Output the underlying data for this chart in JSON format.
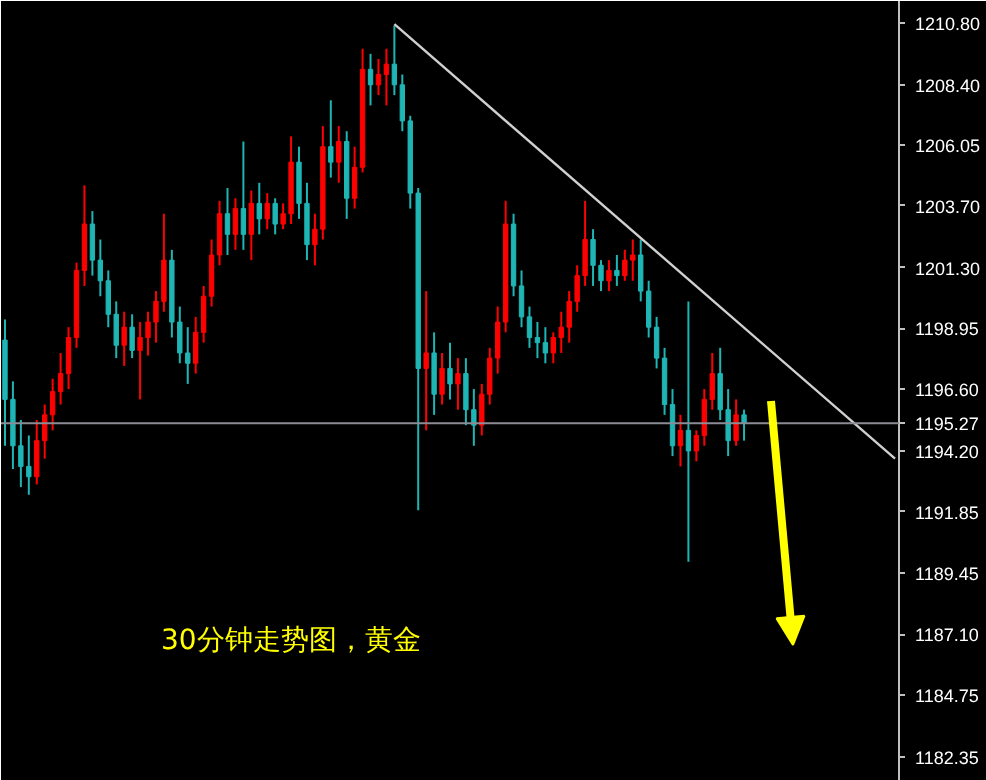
{
  "chart_data": {
    "type": "candlestick",
    "categories": [
      null,
      null,
      null,
      null,
      null,
      null,
      null,
      null,
      null,
      null,
      null,
      null,
      null,
      null,
      null,
      null,
      null,
      null,
      null,
      null,
      null,
      null,
      null,
      null,
      null,
      null,
      null,
      null,
      null,
      null,
      null,
      null,
      null,
      null,
      null,
      null,
      null,
      null,
      null,
      null,
      null,
      null,
      null,
      null,
      null,
      null,
      null,
      null,
      null,
      null,
      null,
      null,
      null,
      null,
      null,
      null,
      null,
      null,
      null,
      null,
      null,
      null,
      null,
      null,
      null,
      null,
      null,
      null,
      null,
      null,
      null,
      null,
      null,
      null,
      null,
      null,
      null,
      null,
      null,
      null,
      null,
      null,
      null,
      null,
      null,
      null,
      null,
      null,
      null,
      null,
      null,
      null,
      null,
      null,
      null,
      null,
      null,
      null,
      null,
      null,
      null,
      null,
      null,
      null,
      null,
      null,
      null,
      null,
      null,
      null,
      null,
      null,
      null
    ],
    "ohlc": [
      [
        1198.5,
        1199.3,
        1194.4,
        1196.2
      ],
      [
        1196.2,
        1196.9,
        1193.5,
        1194.4
      ],
      [
        1194.4,
        1195.4,
        1192.8,
        1193.6
      ],
      [
        1193.6,
        1194.8,
        1192.5,
        1193.2
      ],
      [
        1193.2,
        1195.4,
        1192.9,
        1194.6
      ],
      [
        1194.6,
        1196.0,
        1193.9,
        1195.6
      ],
      [
        1195.6,
        1197.0,
        1195.0,
        1196.5
      ],
      [
        1196.5,
        1198.0,
        1196.0,
        1197.2
      ],
      [
        1197.2,
        1199.0,
        1196.6,
        1198.6
      ],
      [
        1198.6,
        1201.5,
        1198.2,
        1201.2
      ],
      [
        1201.2,
        1204.5,
        1200.6,
        1203.0
      ],
      [
        1203.0,
        1203.5,
        1201.0,
        1201.6
      ],
      [
        1201.6,
        1202.4,
        1200.2,
        1200.8
      ],
      [
        1200.8,
        1201.2,
        1199.0,
        1199.5
      ],
      [
        1199.5,
        1200.0,
        1197.8,
        1198.3
      ],
      [
        1198.3,
        1199.6,
        1197.5,
        1199.0
      ],
      [
        1199.0,
        1199.5,
        1197.8,
        1198.1
      ],
      [
        1198.1,
        1199.2,
        1196.2,
        1198.6
      ],
      [
        1198.6,
        1199.6,
        1197.9,
        1199.2
      ],
      [
        1199.2,
        1200.4,
        1198.4,
        1200.0
      ],
      [
        1200.0,
        1203.4,
        1199.6,
        1201.6
      ],
      [
        1201.6,
        1202.0,
        1198.6,
        1199.2
      ],
      [
        1199.2,
        1199.8,
        1197.6,
        1198.0
      ],
      [
        1198.0,
        1199.0,
        1196.8,
        1197.6
      ],
      [
        1197.6,
        1199.4,
        1197.2,
        1198.8
      ],
      [
        1198.8,
        1200.6,
        1198.4,
        1200.2
      ],
      [
        1200.2,
        1202.4,
        1199.8,
        1201.8
      ],
      [
        1201.8,
        1203.9,
        1201.4,
        1203.4
      ],
      [
        1203.4,
        1204.4,
        1201.8,
        1202.6
      ],
      [
        1202.6,
        1204.0,
        1202.0,
        1203.6
      ],
      [
        1203.6,
        1206.2,
        1202.0,
        1202.6
      ],
      [
        1202.6,
        1204.3,
        1201.6,
        1203.8
      ],
      [
        1203.8,
        1204.6,
        1202.6,
        1203.2
      ],
      [
        1203.2,
        1204.2,
        1202.8,
        1203.8
      ],
      [
        1203.8,
        1204.0,
        1202.6,
        1203.0
      ],
      [
        1203.0,
        1203.8,
        1202.8,
        1203.4
      ],
      [
        1203.4,
        1206.4,
        1203.0,
        1205.4
      ],
      [
        1205.4,
        1206.0,
        1203.2,
        1203.8
      ],
      [
        1203.8,
        1204.6,
        1201.6,
        1202.2
      ],
      [
        1202.2,
        1203.4,
        1201.4,
        1202.8
      ],
      [
        1202.8,
        1206.8,
        1202.4,
        1206.0
      ],
      [
        1206.0,
        1207.8,
        1204.8,
        1205.4
      ],
      [
        1205.4,
        1206.8,
        1204.6,
        1206.2
      ],
      [
        1206.2,
        1206.6,
        1203.2,
        1204.0
      ],
      [
        1204.0,
        1206.0,
        1203.6,
        1205.2
      ],
      [
        1205.2,
        1209.8,
        1205.0,
        1209.0
      ],
      [
        1209.0,
        1209.6,
        1207.6,
        1208.4
      ],
      [
        1208.4,
        1209.4,
        1208.0,
        1208.8
      ],
      [
        1208.8,
        1209.8,
        1207.6,
        1209.2
      ],
      [
        1209.2,
        1210.7,
        1208.0,
        1208.4
      ],
      [
        1208.4,
        1208.8,
        1206.6,
        1207.0
      ],
      [
        1207.0,
        1207.2,
        1203.6,
        1204.2
      ],
      [
        1204.2,
        1204.4,
        1191.9,
        1197.4
      ],
      [
        1197.4,
        1200.4,
        1195.0,
        1198.0
      ],
      [
        1198.0,
        1198.8,
        1195.6,
        1196.4
      ],
      [
        1196.4,
        1198.0,
        1196.0,
        1197.4
      ],
      [
        1197.4,
        1198.4,
        1196.2,
        1196.8
      ],
      [
        1196.8,
        1197.8,
        1195.8,
        1197.2
      ],
      [
        1197.2,
        1197.8,
        1195.2,
        1195.8
      ],
      [
        1195.8,
        1196.6,
        1194.4,
        1195.2
      ],
      [
        1195.2,
        1196.8,
        1194.8,
        1196.4
      ],
      [
        1196.4,
        1198.2,
        1196.0,
        1197.8
      ],
      [
        1197.8,
        1199.8,
        1197.2,
        1199.2
      ],
      [
        1199.2,
        1203.9,
        1198.8,
        1203.0
      ],
      [
        1203.0,
        1203.4,
        1200.2,
        1200.6
      ],
      [
        1200.6,
        1201.2,
        1199.0,
        1199.4
      ],
      [
        1199.4,
        1199.8,
        1198.2,
        1198.6
      ],
      [
        1198.6,
        1199.2,
        1197.8,
        1198.4
      ],
      [
        1198.4,
        1199.0,
        1197.6,
        1198.0
      ],
      [
        1198.0,
        1198.8,
        1197.6,
        1198.6
      ],
      [
        1198.6,
        1199.6,
        1198.0,
        1199.0
      ],
      [
        1199.0,
        1200.4,
        1198.4,
        1200.0
      ],
      [
        1200.0,
        1201.4,
        1199.6,
        1201.0
      ],
      [
        1201.0,
        1203.9,
        1200.6,
        1202.4
      ],
      [
        1202.4,
        1202.8,
        1200.6,
        1201.4
      ],
      [
        1201.4,
        1201.6,
        1200.4,
        1200.8
      ],
      [
        1200.8,
        1201.6,
        1200.4,
        1201.2
      ],
      [
        1201.2,
        1201.8,
        1200.6,
        1201.0
      ],
      [
        1201.0,
        1202.0,
        1200.8,
        1201.6
      ],
      [
        1201.6,
        1202.4,
        1200.8,
        1201.8
      ],
      [
        1201.8,
        1202.4,
        1200.0,
        1200.4
      ],
      [
        1200.4,
        1200.8,
        1198.6,
        1199.0
      ],
      [
        1199.0,
        1199.4,
        1197.4,
        1197.8
      ],
      [
        1197.8,
        1198.2,
        1195.6,
        1196.0
      ],
      [
        1196.0,
        1196.6,
        1194.0,
        1194.4
      ],
      [
        1194.4,
        1195.6,
        1193.6,
        1195.0
      ],
      [
        1195.0,
        1200.0,
        1189.9,
        1194.2
      ],
      [
        1194.2,
        1195.0,
        1193.8,
        1194.8
      ],
      [
        1194.8,
        1196.6,
        1194.4,
        1196.2
      ],
      [
        1196.2,
        1198.0,
        1195.8,
        1197.2
      ],
      [
        1197.2,
        1198.2,
        1195.4,
        1195.8
      ],
      [
        1195.8,
        1196.6,
        1194.0,
        1194.6
      ],
      [
        1194.6,
        1196.2,
        1194.4,
        1195.6
      ],
      [
        1195.6,
        1195.8,
        1194.6,
        1195.27
      ],
      null,
      null,
      null,
      null,
      null,
      null,
      null,
      null,
      null,
      null,
      null,
      null,
      null,
      null,
      null,
      null,
      null,
      null,
      null
    ],
    "colors": [
      "#1fb5b5",
      "#1fb5b5",
      "#1fb5b5",
      "#1fb5b5",
      "#ff0000",
      "#ff0000",
      "#ff0000",
      "#ff0000",
      "#ff0000",
      "#ff0000",
      "#ff0000",
      "#1fb5b5",
      "#1fb5b5",
      "#1fb5b5",
      "#1fb5b5",
      "#ff0000",
      "#1fb5b5",
      "#ff0000",
      "#ff0000",
      "#ff0000",
      "#ff0000",
      "#1fb5b5",
      "#1fb5b5",
      "#1fb5b5",
      "#ff0000",
      "#ff0000",
      "#ff0000",
      "#ff0000",
      "#1fb5b5",
      "#ff0000",
      "#1fb5b5",
      "#ff0000",
      "#1fb5b5",
      "#ff0000",
      "#1fb5b5",
      "#ff0000",
      "#ff0000",
      "#1fb5b5",
      "#1fb5b5",
      "#ff0000",
      "#ff0000",
      "#1fb5b5",
      "#ff0000",
      "#1fb5b5",
      "#ff0000",
      "#ff0000",
      "#1fb5b5",
      "#ff0000",
      "#ff0000",
      "#1fb5b5",
      "#1fb5b5",
      "#1fb5b5",
      "#1fb5b5",
      "#ff0000",
      "#1fb5b5",
      "#ff0000",
      "#1fb5b5",
      "#ff0000",
      "#1fb5b5",
      "#1fb5b5",
      "#ff0000",
      "#ff0000",
      "#ff0000",
      "#ff0000",
      "#1fb5b5",
      "#1fb5b5",
      "#1fb5b5",
      "#1fb5b5",
      "#1fb5b5",
      "#ff0000",
      "#ff0000",
      "#ff0000",
      "#ff0000",
      "#ff0000",
      "#1fb5b5",
      "#1fb5b5",
      "#ff0000",
      "#1fb5b5",
      "#ff0000",
      "#ff0000",
      "#1fb5b5",
      "#1fb5b5",
      "#1fb5b5",
      "#1fb5b5",
      "#1fb5b5",
      "#ff0000",
      "#1fb5b5",
      "#ff0000",
      "#ff0000",
      "#ff0000",
      "#1fb5b5",
      "#1fb5b5",
      "#ff0000",
      "#1fb5b5",
      null,
      null,
      null,
      null,
      null,
      null,
      null,
      null,
      null,
      null,
      null,
      null,
      null,
      null,
      null,
      null,
      null,
      null,
      null
    ],
    "series": [
      {
        "type": "line",
        "color": "#d0d0d0",
        "values": [
          null,
          null,
          null,
          null,
          null,
          null,
          null,
          null,
          null,
          null,
          null,
          null,
          null,
          null,
          null,
          null,
          null,
          null,
          null,
          null,
          null,
          null,
          null,
          null,
          null,
          null,
          null,
          null,
          null,
          null,
          null,
          null,
          null,
          null,
          null,
          null,
          null,
          null,
          null,
          null,
          null,
          null,
          null,
          null,
          null,
          null,
          null,
          null,
          null,
          1210.75,
          null,
          null,
          null,
          null,
          null,
          null,
          null,
          null,
          null,
          null,
          null,
          null,
          null,
          null,
          null,
          null,
          null,
          null,
          null,
          null,
          null,
          null,
          null,
          null,
          null,
          null,
          null,
          null,
          null,
          null,
          null,
          null,
          null,
          null,
          null,
          null,
          null,
          null,
          null,
          null,
          null,
          null,
          null,
          null,
          null,
          null,
          null,
          null,
          null,
          null,
          null,
          null,
          null,
          null,
          null,
          null,
          null,
          null,
          null,
          null,
          null,
          null,
          1193.9
        ]
      }
    ],
    "ylim": [
      1181.4,
      1211.65
    ],
    "yticks": [
      {
        "value": 1210.8,
        "label": "1210.80"
      },
      {
        "value": 1208.4,
        "label": "1208.40"
      },
      {
        "value": 1206.05,
        "label": "1206.05"
      },
      {
        "value": 1203.7,
        "label": "1203.70"
      },
      {
        "value": 1201.3,
        "label": "1201.30"
      },
      {
        "value": 1198.95,
        "label": "1198.95"
      },
      {
        "value": 1196.6,
        "label": "1196.60"
      },
      {
        "value": 1194.2,
        "label": "1194.20"
      },
      {
        "value": 1191.85,
        "label": "1191.85"
      },
      {
        "value": 1189.45,
        "label": "1189.45"
      },
      {
        "value": 1187.1,
        "label": "1187.10"
      },
      {
        "value": 1184.75,
        "label": "1184.75"
      },
      {
        "value": 1182.35,
        "label": "1182.35"
      }
    ],
    "ref_lines": [
      {
        "axis": "y",
        "value": 1195.27,
        "label": "1195.27",
        "color": "#8c8c96"
      }
    ],
    "annotations": [
      "30分钟走势图，黄金"
    ],
    "tick_labels": "y",
    "grid": false
  }
}
